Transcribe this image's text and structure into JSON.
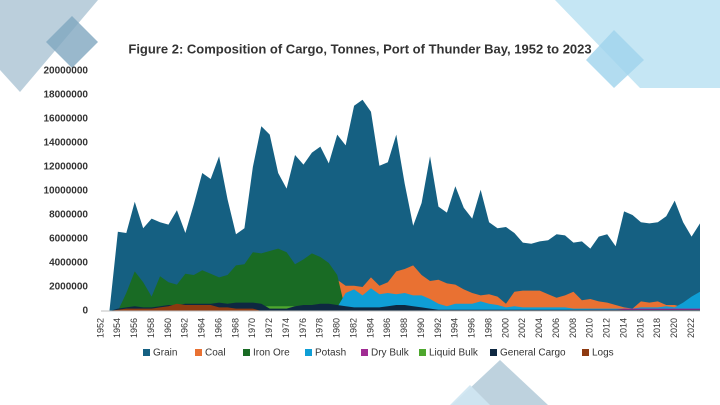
{
  "chart_data": {
    "type": "area",
    "title": "Figure 2: Composition of Cargo, Tonnes, Port of Thunder Bay, 1952 to 2023",
    "categories": [
      "1952",
      null,
      "1954",
      null,
      "1956",
      null,
      "1958",
      null,
      "1960",
      null,
      "1962",
      null,
      "1964",
      null,
      "1966",
      null,
      "1968",
      null,
      "1970",
      null,
      "1972",
      null,
      "1974",
      null,
      "1976",
      null,
      "1978",
      null,
      "1980",
      null,
      "1982",
      null,
      "1984",
      null,
      "1986",
      null,
      "1988",
      null,
      "1990",
      null,
      "1992",
      null,
      "1994",
      null,
      "1996",
      null,
      "1998",
      null,
      "2000",
      null,
      "2002",
      null,
      "2004",
      null,
      "2006",
      null,
      "2008",
      null,
      "2010",
      null,
      "2012",
      null,
      "2014",
      null,
      "2016",
      null,
      "2018",
      null,
      "2020",
      null,
      "2022",
      null
    ],
    "ylim": [
      0,
      20000000
    ],
    "yticks": [
      0,
      2000000,
      4000000,
      6000000,
      8000000,
      10000000,
      12000000,
      14000000,
      16000000,
      18000000,
      20000000
    ],
    "grid": false,
    "legend": "bottom",
    "series": [
      {
        "name": "Grain",
        "color": "#156082",
        "values": [
          0,
          0,
          6600000,
          6500000,
          9100000,
          6900000,
          7700000,
          7400000,
          7200000,
          8400000,
          6500000,
          8900000,
          11500000,
          11000000,
          12900000,
          9300000,
          6400000,
          6900000,
          12000000,
          15400000,
          14700000,
          11500000,
          10200000,
          13000000,
          12200000,
          13200000,
          13700000,
          12300000,
          14700000,
          13800000,
          17100000,
          17600000,
          16600000,
          12100000,
          12400000,
          14700000,
          10600000,
          7100000,
          9000000,
          12900000,
          8700000,
          8200000,
          10400000,
          8600000,
          7700000,
          10100000,
          7400000,
          6900000,
          7000000,
          6500000,
          5700000,
          5600000,
          5800000,
          5900000,
          6400000,
          6300000,
          5700000,
          5800000,
          5200000,
          6200000,
          6400000,
          5400000,
          8300000,
          8000000,
          7400000,
          7300000,
          7400000,
          7900000,
          9200000,
          7400000,
          6200000,
          7300000
        ]
      },
      {
        "name": "Coal",
        "color": "#e97132",
        "values": [
          0,
          0,
          0,
          0,
          0,
          0,
          0,
          0,
          0,
          0,
          0,
          0,
          0,
          0,
          0,
          0,
          0,
          0,
          0,
          0,
          0,
          0,
          0,
          0,
          0,
          0,
          0,
          0,
          2600000,
          2100000,
          2100000,
          2000000,
          2800000,
          2100000,
          2400000,
          3300000,
          3500000,
          3800000,
          3000000,
          2500000,
          2600000,
          2300000,
          2200000,
          1800000,
          1500000,
          1300000,
          1400000,
          1200000,
          600000,
          1600000,
          1700000,
          1700000,
          1700000,
          1400000,
          1100000,
          1300000,
          1600000,
          900000,
          1000000,
          800000,
          700000,
          500000,
          300000,
          200000,
          800000,
          700000,
          800000,
          500000,
          500000,
          300000,
          200000,
          200000
        ]
      },
      {
        "name": "Iron Ore",
        "color": "#196b24",
        "values": [
          0,
          0,
          0,
          1500000,
          3300000,
          2400000,
          1200000,
          2900000,
          2400000,
          2200000,
          3100000,
          3000000,
          3400000,
          3100000,
          2800000,
          3000000,
          3800000,
          3900000,
          4900000,
          4800000,
          5000000,
          5200000,
          4900000,
          3900000,
          4300000,
          4800000,
          4500000,
          4000000,
          3000000,
          0,
          0,
          0,
          0,
          0,
          0,
          0,
          0,
          0,
          0,
          0,
          0,
          0,
          0,
          0,
          0,
          0,
          0,
          0,
          0,
          0,
          0,
          0,
          0,
          0,
          0,
          0,
          0,
          0,
          0,
          0,
          0,
          0,
          0,
          0,
          0,
          0,
          0,
          0,
          0,
          0,
          0,
          0
        ]
      },
      {
        "name": "Potash",
        "color": "#0f9ed5",
        "values": [
          0,
          0,
          0,
          0,
          0,
          0,
          0,
          0,
          0,
          0,
          0,
          0,
          0,
          0,
          0,
          0,
          0,
          0,
          0,
          0,
          0,
          0,
          0,
          0,
          0,
          0,
          0,
          0,
          300000,
          1500000,
          1800000,
          1300000,
          1900000,
          1400000,
          1500000,
          1400000,
          1500000,
          1300000,
          1300000,
          1000000,
          600000,
          400000,
          600000,
          600000,
          600000,
          800000,
          600000,
          500000,
          300000,
          400000,
          300000,
          300000,
          300000,
          300000,
          300000,
          300000,
          200000,
          200000,
          200000,
          200000,
          200000,
          200000,
          200000,
          200000,
          300000,
          300000,
          300000,
          400000,
          300000,
          700000,
          1200000,
          1600000
        ]
      },
      {
        "name": "Dry Bulk",
        "color": "#a02b93",
        "values": [
          0,
          0,
          0,
          0,
          0,
          0,
          0,
          0,
          0,
          0,
          0,
          0,
          0,
          0,
          0,
          0,
          0,
          0,
          0,
          0,
          0,
          0,
          0,
          0,
          0,
          0,
          0,
          0,
          0,
          0,
          0,
          0,
          0,
          0,
          0,
          0,
          0,
          0,
          0,
          0,
          0,
          0,
          0,
          0,
          0,
          0,
          0,
          0,
          0,
          0,
          0,
          0,
          0,
          0,
          0,
          0,
          0,
          0,
          100000,
          100000,
          100000,
          100000,
          200000,
          200000,
          200000,
          200000,
          200000,
          200000,
          200000,
          200000,
          200000,
          200000
        ]
      },
      {
        "name": "Liquid Bulk",
        "color": "#4ea72e",
        "values": [
          0,
          0,
          0,
          0,
          0,
          0,
          0,
          0,
          0,
          0,
          0,
          0,
          0,
          0,
          0,
          0,
          0,
          0,
          0,
          400000,
          400000,
          400000,
          400000,
          400000,
          400000,
          400000,
          400000,
          400000,
          400000,
          0,
          0,
          0,
          0,
          0,
          0,
          0,
          0,
          0,
          0,
          0,
          0,
          0,
          0,
          0,
          0,
          0,
          0,
          0,
          0,
          0,
          0,
          0,
          0,
          0,
          0,
          0,
          0,
          0,
          0,
          0,
          0,
          0,
          0,
          0,
          0,
          0,
          0,
          0,
          0,
          0,
          0,
          0
        ]
      },
      {
        "name": "General Cargo",
        "color": "#0e2841",
        "values": [
          0,
          0,
          200000,
          300000,
          400000,
          300000,
          300000,
          400000,
          500000,
          500000,
          600000,
          600000,
          600000,
          600000,
          700000,
          600000,
          700000,
          700000,
          700000,
          600000,
          200000,
          200000,
          200000,
          400000,
          500000,
          500000,
          600000,
          600000,
          500000,
          400000,
          300000,
          300000,
          300000,
          300000,
          400000,
          500000,
          500000,
          400000,
          300000,
          200000,
          100000,
          100000,
          100000,
          100000,
          100000,
          100000,
          100000,
          100000,
          100000,
          100000,
          100000,
          100000,
          100000,
          100000,
          100000,
          100000,
          100000,
          100000,
          100000,
          100000,
          100000,
          100000,
          100000,
          100000,
          100000,
          100000,
          100000,
          100000,
          100000,
          100000,
          100000,
          100000
        ]
      },
      {
        "name": "Logs",
        "color": "#8e3a10",
        "values": [
          0,
          0,
          100000,
          200000,
          200000,
          200000,
          200000,
          300000,
          400000,
          600000,
          500000,
          500000,
          500000,
          500000,
          300000,
          300000,
          200000,
          200000,
          200000,
          0,
          0,
          0,
          0,
          0,
          0,
          0,
          0,
          0,
          0,
          0,
          0,
          0,
          0,
          0,
          0,
          0,
          0,
          0,
          0,
          0,
          0,
          0,
          0,
          0,
          0,
          0,
          0,
          0,
          0,
          0,
          0,
          0,
          0,
          0,
          0,
          0,
          0,
          0,
          0,
          0,
          0,
          0,
          0,
          0,
          0,
          0,
          0,
          0,
          0,
          0,
          0,
          0
        ]
      }
    ]
  }
}
